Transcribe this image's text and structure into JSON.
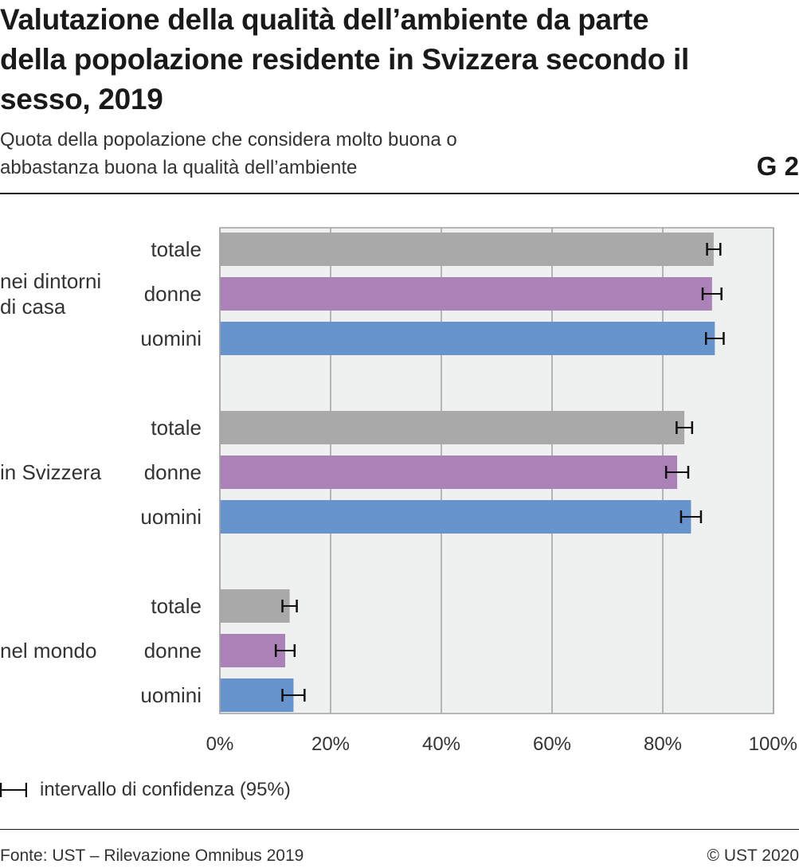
{
  "header": {
    "title": "Valutazione della qualità dell’ambiente da parte della popolazione residente in Svizzera secondo il sesso, 2019",
    "subtitle": "Quota della popolazione che considera molto buona o abbastanza buona la qualità dell’ambiente",
    "figure_id": "G 2"
  },
  "legend": {
    "ci_label": "intervallo di confidenza (95%)"
  },
  "footer": {
    "source": "Fonte: UST – Rilevazione Omnibus 2019",
    "copyright": "© UST 2020"
  },
  "colors": {
    "totale": "#a9a9a9",
    "donne": "#ab82b8",
    "uomini": "#6894cd",
    "plot_background": "#eff0f0",
    "grid": "#a6a6a6"
  },
  "chart_data": {
    "type": "bar",
    "orientation": "horizontal",
    "unit": "%",
    "xlim": [
      0,
      100
    ],
    "xticks": [
      0,
      20,
      40,
      60,
      80,
      100
    ],
    "xtick_labels": [
      "0%",
      "20%",
      "40%",
      "60%",
      "80%",
      "100%"
    ],
    "grid": true,
    "error_bars": "95% confidence interval",
    "groups": [
      {
        "label": "nei dintorni di casa",
        "bars": [
          {
            "category": "totale",
            "value": 89.2,
            "ci": [
              88.0,
              90.4
            ]
          },
          {
            "category": "donne",
            "value": 88.9,
            "ci": [
              87.2,
              90.6
            ]
          },
          {
            "category": "uomini",
            "value": 89.4,
            "ci": [
              87.8,
              91.0
            ]
          }
        ]
      },
      {
        "label": "in Svizzera",
        "bars": [
          {
            "category": "totale",
            "value": 83.9,
            "ci": [
              82.5,
              85.3
            ]
          },
          {
            "category": "donne",
            "value": 82.6,
            "ci": [
              80.6,
              84.6
            ]
          },
          {
            "category": "uomini",
            "value": 85.1,
            "ci": [
              83.3,
              86.9
            ]
          }
        ]
      },
      {
        "label": "nel mondo",
        "bars": [
          {
            "category": "totale",
            "value": 12.6,
            "ci": [
              11.3,
              13.9
            ]
          },
          {
            "category": "donne",
            "value": 11.8,
            "ci": [
              10.1,
              13.5
            ]
          },
          {
            "category": "uomini",
            "value": 13.3,
            "ci": [
              11.3,
              15.3
            ]
          }
        ]
      }
    ]
  }
}
